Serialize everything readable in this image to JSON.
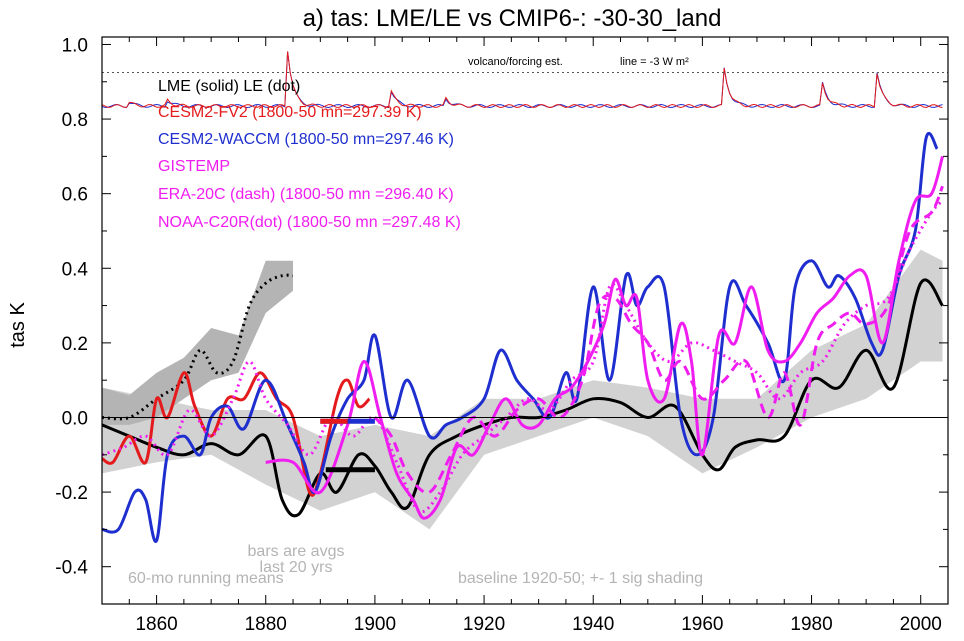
{
  "chart_data": {
    "type": "line",
    "title": "a) tas: LME/LE vs CMIP6-: -30-30_land",
    "ylabel": "tas K",
    "xlabel": "",
    "xlim": [
      1850,
      2005
    ],
    "ylim": [
      -0.5,
      1.02
    ],
    "xticks": [
      1860,
      1880,
      1900,
      1920,
      1940,
      1960,
      1980,
      2000
    ],
    "yticks": [
      -0.4,
      -0.2,
      0.0,
      0.2,
      0.4,
      0.6,
      0.8,
      1.0
    ],
    "ytick_labels": [
      "-0.4",
      "-0.2",
      "0.0",
      "0.2",
      "0.4",
      "0.6",
      "0.8",
      "1.0"
    ],
    "zero_line": 0.0,
    "volcano_label": "volcano/forcing est.",
    "volcano_line_label": "line = -3 W m²",
    "volcano_line_y": 0.925,
    "legend": {
      "header": "LME (solid)   LE (dot)",
      "entries": [
        {
          "text": "CESM2-FV2 (1800-50 mn=297.39 K)",
          "color": "#e41a1c"
        },
        {
          "text": "CESM2-WACCM (1800-50 mn=297.46 K)",
          "color": "#1f2fcf"
        },
        {
          "text": "GISTEMP",
          "color": "#f01df0"
        },
        {
          "text": "ERA-20C (dash) (1800-50 mn =296.40 K)",
          "color": "#f01df0"
        },
        {
          "text": "NOAA-C20R(dot) (1800-50 mn =297.48 K)",
          "color": "#f01df0"
        }
      ]
    },
    "annotations": {
      "bars_line1": "bars are avgs",
      "bars_line2": "last 20 yrs",
      "running": "60-mo running means",
      "baseline": "baseline 1920-50; +- 1 sig shading"
    },
    "series": [
      {
        "name": "LME (solid)",
        "color": "#000000",
        "style": "solid",
        "x": [
          1850,
          1855,
          1860,
          1865,
          1870,
          1875,
          1880,
          1883,
          1886,
          1890,
          1893,
          1897,
          1900,
          1903,
          1906,
          1910,
          1915,
          1920,
          1925,
          1930,
          1935,
          1940,
          1945,
          1950,
          1955,
          1960,
          1963,
          1966,
          1970,
          1975,
          1980,
          1985,
          1990,
          1995,
          2000,
          2004
        ],
        "y": [
          -0.02,
          -0.05,
          -0.08,
          -0.1,
          -0.07,
          -0.1,
          -0.05,
          -0.22,
          -0.26,
          -0.15,
          -0.2,
          -0.1,
          -0.13,
          -0.2,
          -0.24,
          -0.1,
          -0.05,
          -0.02,
          0.0,
          0.0,
          0.02,
          0.05,
          0.04,
          0.0,
          0.03,
          -0.1,
          -0.14,
          -0.08,
          -0.06,
          -0.05,
          0.1,
          0.08,
          0.18,
          0.08,
          0.36,
          0.3
        ]
      },
      {
        "name": "",
        "color": "#000000",
        "style": "dot",
        "x": [
          1850,
          1855,
          1860,
          1865,
          1868,
          1871,
          1874,
          1877,
          1880,
          1883,
          1885
        ],
        "y": [
          0.0,
          0.0,
          0.05,
          0.1,
          0.18,
          0.12,
          0.15,
          0.3,
          0.36,
          0.38,
          0.38
        ]
      },
      {
        "name": "CESM2-FV2",
        "color": "#e41a1c",
        "style": "solid",
        "x": [
          1850,
          1852,
          1855,
          1858,
          1860,
          1862,
          1865,
          1867,
          1870,
          1873,
          1876,
          1879,
          1882,
          1885,
          1888,
          1890,
          1893,
          1895,
          1897,
          1899
        ],
        "y": [
          -0.11,
          -0.12,
          -0.05,
          -0.12,
          0.05,
          0.0,
          0.12,
          0.03,
          -0.05,
          0.05,
          0.05,
          0.12,
          0.05,
          0.0,
          -0.2,
          -0.15,
          0.05,
          0.1,
          0.03,
          0.05
        ]
      },
      {
        "name": "CESM2-WACCM",
        "color": "#1f2fcf",
        "style": "solid",
        "x": [
          1850,
          1853,
          1856,
          1858,
          1860,
          1862,
          1865,
          1868,
          1870,
          1873,
          1876,
          1880,
          1884,
          1887,
          1889,
          1892,
          1895,
          1898,
          1900,
          1903,
          1906,
          1910,
          1913,
          1916,
          1920,
          1923,
          1926,
          1929,
          1932,
          1935,
          1937,
          1940,
          1943,
          1946,
          1948,
          1950,
          1953,
          1956,
          1959,
          1962,
          1965,
          1968,
          1972,
          1975,
          1977,
          1980,
          1983,
          1985,
          1988,
          1991,
          1993,
          1996,
          1999,
          2001,
          2003
        ],
        "y": [
          -0.3,
          -0.3,
          -0.2,
          -0.22,
          -0.33,
          -0.1,
          -0.05,
          -0.1,
          0.0,
          0.03,
          -0.03,
          0.1,
          -0.02,
          -0.12,
          -0.2,
          -0.05,
          0.05,
          0.1,
          0.22,
          0.0,
          0.1,
          -0.05,
          -0.02,
          0.0,
          0.05,
          0.18,
          0.1,
          0.05,
          0.0,
          0.12,
          0.05,
          0.35,
          0.1,
          0.38,
          0.3,
          0.35,
          0.35,
          0.0,
          -0.1,
          0.0,
          0.35,
          0.3,
          0.2,
          0.1,
          0.35,
          0.42,
          0.35,
          0.38,
          0.32,
          0.2,
          0.18,
          0.38,
          0.5,
          0.75,
          0.72
        ]
      },
      {
        "name": "GISTEMP",
        "color": "#f01df0",
        "style": "solid",
        "x": [
          1880,
          1885,
          1890,
          1895,
          1898,
          1901,
          1904,
          1907,
          1909,
          1912,
          1915,
          1918,
          1921,
          1924,
          1927,
          1930,
          1933,
          1936,
          1939,
          1942,
          1944,
          1946,
          1948,
          1950,
          1953,
          1956,
          1958,
          1960,
          1963,
          1966,
          1969,
          1972,
          1975,
          1978,
          1981,
          1984,
          1987,
          1990,
          1993,
          1996,
          1999,
          2002,
          2004
        ],
        "y": [
          -0.12,
          -0.12,
          -0.2,
          -0.02,
          0.15,
          0.0,
          -0.15,
          -0.22,
          -0.27,
          -0.22,
          -0.08,
          -0.1,
          -0.02,
          0.05,
          -0.02,
          -0.02,
          0.05,
          0.08,
          0.15,
          0.25,
          0.37,
          0.3,
          0.32,
          0.1,
          0.05,
          0.25,
          0.15,
          -0.1,
          0.22,
          0.2,
          0.35,
          0.18,
          0.15,
          0.2,
          0.28,
          0.32,
          0.38,
          0.38,
          0.2,
          0.42,
          0.58,
          0.6,
          0.7
        ]
      },
      {
        "name": "ERA-20C (dash)",
        "color": "#f01df0",
        "style": "dash",
        "x": [
          1900,
          1903,
          1906,
          1910,
          1914,
          1918,
          1922,
          1926,
          1930,
          1934,
          1938,
          1941,
          1944,
          1947,
          1950,
          1953,
          1956,
          1960,
          1964,
          1968,
          1972,
          1975,
          1978,
          1981,
          1984,
          1987,
          1990,
          1994,
          1998,
          2002,
          2004
        ],
        "y": [
          0.0,
          -0.05,
          -0.15,
          -0.2,
          -0.1,
          0.0,
          -0.05,
          0.02,
          0.05,
          0.0,
          0.1,
          0.3,
          0.32,
          0.25,
          0.2,
          0.1,
          0.15,
          0.05,
          0.1,
          0.15,
          0.0,
          0.12,
          -0.02,
          0.2,
          0.25,
          0.28,
          0.25,
          0.3,
          0.5,
          0.55,
          0.62
        ]
      },
      {
        "name": "NOAA-C20R(dot)",
        "color": "#f01df0",
        "style": "dot",
        "x": [
          1850,
          1854,
          1858,
          1862,
          1866,
          1870,
          1874,
          1877,
          1880,
          1884,
          1888,
          1892,
          1896,
          1900,
          1904,
          1908,
          1912,
          1916,
          1920,
          1924,
          1928,
          1932,
          1936,
          1940,
          1943,
          1946,
          1950,
          1954,
          1958,
          1962,
          1966,
          1970,
          1974,
          1978,
          1982,
          1986,
          1990,
          1994,
          1998,
          2002,
          2004
        ],
        "y": [
          -0.1,
          -0.08,
          -0.05,
          -0.1,
          0.02,
          -0.05,
          0.05,
          0.15,
          0.05,
          -0.02,
          -0.1,
          0.0,
          -0.05,
          0.0,
          -0.12,
          -0.25,
          -0.2,
          -0.1,
          -0.05,
          0.0,
          0.05,
          0.02,
          0.1,
          0.15,
          0.35,
          0.3,
          0.2,
          0.15,
          0.2,
          0.18,
          0.15,
          0.12,
          0.05,
          0.12,
          0.15,
          0.25,
          0.3,
          0.32,
          0.45,
          0.55,
          0.58
        ]
      }
    ],
    "volcano_forcing": {
      "color_a": "#1f2fcf",
      "color_b": "#e41a1c",
      "base": 0.835,
      "spikes": [
        {
          "x": 1855,
          "h": 0.01
        },
        {
          "x": 1862,
          "h": 0.015
        },
        {
          "x": 1884,
          "h": 0.15
        },
        {
          "x": 1903,
          "h": 0.04
        },
        {
          "x": 1913,
          "h": 0.02
        },
        {
          "x": 1964,
          "h": 0.1
        },
        {
          "x": 1982,
          "h": 0.06
        },
        {
          "x": 1992,
          "h": 0.09
        }
      ]
    },
    "shading": [
      {
        "name": "",
        "color": "#d2d2d2",
        "x": [
          1850,
          1860,
          1870,
          1880,
          1890,
          1900,
          1910,
          1920,
          1930,
          1940,
          1950,
          1960,
          1970,
          1980,
          1990,
          2000,
          2004
        ],
        "lo": [
          -0.15,
          -0.12,
          -0.1,
          -0.18,
          -0.25,
          -0.2,
          -0.3,
          -0.1,
          -0.05,
          0.0,
          -0.05,
          -0.15,
          -0.08,
          0.0,
          0.05,
          0.15,
          0.15
        ],
        "hi": [
          0.08,
          0.05,
          0.02,
          0.02,
          -0.05,
          -0.02,
          -0.05,
          0.05,
          0.05,
          0.1,
          0.08,
          0.05,
          0.05,
          0.18,
          0.25,
          0.45,
          0.42
        ]
      },
      {
        "name": "",
        "color": "#b4b4b4",
        "x": [
          1850,
          1855,
          1860,
          1865,
          1870,
          1875,
          1880,
          1885
        ],
        "lo": [
          -0.02,
          -0.02,
          0.0,
          0.05,
          0.1,
          0.12,
          0.28,
          0.34
        ],
        "hi": [
          0.08,
          0.06,
          0.12,
          0.16,
          0.24,
          0.22,
          0.42,
          0.42
        ]
      }
    ],
    "bars": [
      {
        "color": "#1f2fcf",
        "x0": 1890,
        "x1": 1900,
        "y": -0.01
      },
      {
        "color": "#e41a1c",
        "x0": 1890,
        "x1": 1895,
        "y": -0.01
      },
      {
        "color": "#000000",
        "x0": 1891,
        "x1": 1900,
        "y": -0.14
      }
    ]
  }
}
